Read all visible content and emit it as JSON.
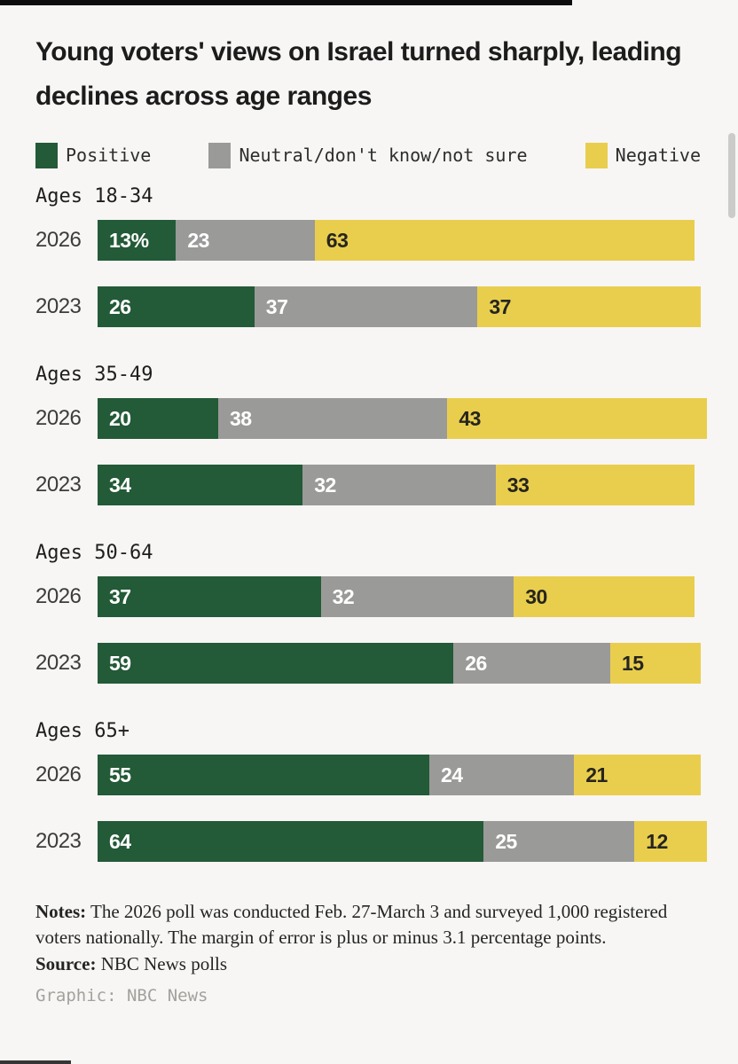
{
  "page": {
    "title": "Young voters' views on Israel turned sharply, leading declines across age ranges",
    "background_color": "#f7f6f4"
  },
  "legend": [
    {
      "name": "Positive",
      "color": "#235a37",
      "text_color": "#ffffff"
    },
    {
      "name": "Neutral/don't know/not sure",
      "color": "#9a9a98",
      "text_color": "#ffffff"
    },
    {
      "name": "Negative",
      "color": "#e9ce4e",
      "text_color": "#26251f"
    }
  ],
  "chart_data": {
    "type": "bar",
    "orientation": "horizontal",
    "stacked": true,
    "unit": "percent",
    "x_max": 100,
    "series": [
      "Positive",
      "Neutral/don't know/not sure",
      "Negative"
    ],
    "series_colors": [
      "#235a37",
      "#9a9a98",
      "#e9ce4e"
    ],
    "groups": [
      {
        "label": "Ages 18-34",
        "rows": [
          {
            "year": "2026",
            "values": [
              13,
              23,
              63
            ],
            "labels": [
              "13%",
              "23",
              "63"
            ]
          },
          {
            "year": "2023",
            "values": [
              26,
              37,
              37
            ],
            "labels": [
              "26",
              "37",
              "37"
            ]
          }
        ]
      },
      {
        "label": "Ages 35-49",
        "rows": [
          {
            "year": "2026",
            "values": [
              20,
              38,
              43
            ],
            "labels": [
              "20",
              "38",
              "43"
            ]
          },
          {
            "year": "2023",
            "values": [
              34,
              32,
              33
            ],
            "labels": [
              "34",
              "32",
              "33"
            ]
          }
        ]
      },
      {
        "label": "Ages 50-64",
        "rows": [
          {
            "year": "2026",
            "values": [
              37,
              32,
              30
            ],
            "labels": [
              "37",
              "32",
              "30"
            ]
          },
          {
            "year": "2023",
            "values": [
              59,
              26,
              15
            ],
            "labels": [
              "59",
              "26",
              "15"
            ]
          }
        ]
      },
      {
        "label": "Ages 65+",
        "rows": [
          {
            "year": "2026",
            "values": [
              55,
              24,
              21
            ],
            "labels": [
              "55",
              "24",
              "21"
            ]
          },
          {
            "year": "2023",
            "values": [
              64,
              25,
              12
            ],
            "labels": [
              "64",
              "25",
              "12"
            ]
          }
        ]
      }
    ]
  },
  "footer": {
    "notes_label": "Notes:",
    "notes_text": " The 2026 poll was conducted Feb. 27-March 3 and surveyed 1,000 registered voters nationally. The margin of error is plus or minus 3.1 percentage points.",
    "source_label": "Source:",
    "source_text": " NBC News polls",
    "credit": "Graphic: NBC News"
  }
}
